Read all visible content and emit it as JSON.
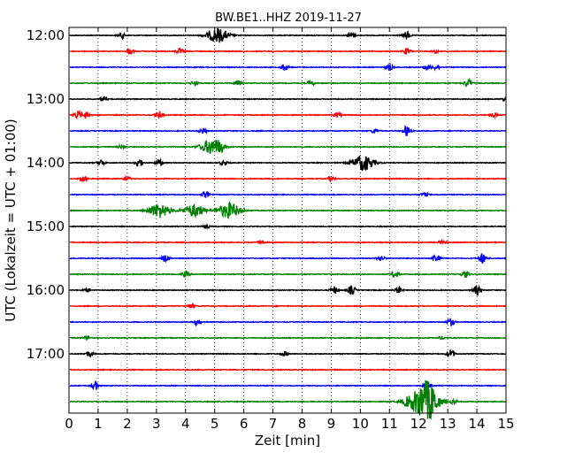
{
  "chart_data": {
    "type": "line",
    "title": "BW.BE1..HHZ 2019-11-27",
    "xlabel": "Zeit  [min]",
    "ylabel": "UTC (Lokalzeit = UTC + 01:00)",
    "xlim": [
      0,
      15
    ],
    "x_ticks": [
      "0",
      "1",
      "2",
      "3",
      "4",
      "5",
      "6",
      "7",
      "8",
      "9",
      "10",
      "11",
      "12",
      "13",
      "14",
      "15"
    ],
    "y_ticks": [
      "12:00",
      "13:00",
      "14:00",
      "15:00",
      "16:00",
      "17:00"
    ],
    "grid": true,
    "colors": [
      "#000000",
      "#ff0000",
      "#0000ff",
      "#008000"
    ],
    "series": [
      {
        "start": "12:00",
        "color": "#000000",
        "events": [
          [
            1.8,
            0.35
          ],
          [
            5.1,
            0.9
          ],
          [
            9.7,
            0.4
          ],
          [
            11.6,
            0.5
          ]
        ]
      },
      {
        "start": "12:15",
        "color": "#ff0000",
        "events": [
          [
            2.1,
            0.3
          ],
          [
            3.8,
            0.35
          ],
          [
            11.6,
            0.4
          ],
          [
            12.6,
            0.25
          ]
        ]
      },
      {
        "start": "12:30",
        "color": "#0000ff",
        "events": [
          [
            7.4,
            0.4
          ],
          [
            11.0,
            0.35
          ],
          [
            12.3,
            0.3
          ],
          [
            12.6,
            0.3
          ]
        ]
      },
      {
        "start": "12:45",
        "color": "#008000",
        "events": [
          [
            4.3,
            0.3
          ],
          [
            5.8,
            0.3
          ],
          [
            8.3,
            0.3
          ],
          [
            13.7,
            0.55
          ]
        ]
      },
      {
        "start": "13:00",
        "color": "#000000",
        "events": [
          [
            1.2,
            0.25
          ],
          [
            15.0,
            0.3
          ]
        ]
      },
      {
        "start": "13:15",
        "color": "#ff0000",
        "events": [
          [
            0.3,
            0.5
          ],
          [
            0.6,
            0.45
          ],
          [
            3.1,
            0.45
          ],
          [
            9.2,
            0.3
          ],
          [
            14.6,
            0.25
          ]
        ]
      },
      {
        "start": "13:30",
        "color": "#0000ff",
        "events": [
          [
            4.6,
            0.35
          ],
          [
            10.5,
            0.3
          ],
          [
            11.6,
            0.7
          ]
        ]
      },
      {
        "start": "13:45",
        "color": "#008000",
        "events": [
          [
            1.8,
            0.25
          ],
          [
            4.9,
            1.0
          ],
          [
            5.2,
            0.4
          ]
        ]
      },
      {
        "start": "14:00",
        "color": "#000000",
        "events": [
          [
            1.1,
            0.4
          ],
          [
            2.4,
            0.55
          ],
          [
            3.1,
            0.4
          ],
          [
            5.3,
            0.3
          ],
          [
            10.1,
            1.0
          ]
        ]
      },
      {
        "start": "14:15",
        "color": "#ff0000",
        "events": [
          [
            0.5,
            0.35
          ],
          [
            2.0,
            0.25
          ],
          [
            9.0,
            0.3
          ]
        ]
      },
      {
        "start": "14:30",
        "color": "#0000ff",
        "events": [
          [
            4.7,
            0.4
          ],
          [
            12.2,
            0.25
          ]
        ]
      },
      {
        "start": "14:45",
        "color": "#008000",
        "events": [
          [
            3.1,
            0.9
          ],
          [
            4.3,
            0.8
          ],
          [
            5.5,
            1.0
          ]
        ]
      },
      {
        "start": "15:00",
        "color": "#000000",
        "events": [
          [
            4.7,
            0.2
          ]
        ]
      },
      {
        "start": "15:15",
        "color": "#ff0000",
        "events": [
          [
            6.6,
            0.25
          ],
          [
            12.8,
            0.2
          ]
        ]
      },
      {
        "start": "15:30",
        "color": "#0000ff",
        "events": [
          [
            3.3,
            0.45
          ],
          [
            10.7,
            0.35
          ],
          [
            12.6,
            0.6
          ],
          [
            14.2,
            0.7
          ]
        ]
      },
      {
        "start": "15:45",
        "color": "#008000",
        "events": [
          [
            4.0,
            0.35
          ],
          [
            11.2,
            0.5
          ],
          [
            13.6,
            0.45
          ]
        ]
      },
      {
        "start": "16:00",
        "color": "#000000",
        "events": [
          [
            0.6,
            0.2
          ],
          [
            9.1,
            0.45
          ],
          [
            9.7,
            0.6
          ],
          [
            11.3,
            0.4
          ],
          [
            14.0,
            0.6
          ]
        ]
      },
      {
        "start": "16:15",
        "color": "#ff0000",
        "events": [
          [
            4.2,
            0.3
          ]
        ]
      },
      {
        "start": "16:30",
        "color": "#0000ff",
        "events": [
          [
            4.4,
            0.35
          ],
          [
            13.1,
            0.5
          ]
        ]
      },
      {
        "start": "16:45",
        "color": "#008000",
        "events": [
          [
            0.6,
            0.2
          ],
          [
            12.8,
            0.2
          ]
        ]
      },
      {
        "start": "17:00",
        "color": "#000000",
        "events": [
          [
            0.7,
            0.35
          ],
          [
            7.4,
            0.25
          ],
          [
            13.1,
            0.55
          ]
        ]
      },
      {
        "start": "17:15",
        "color": "#ff0000",
        "events": []
      },
      {
        "start": "17:30",
        "color": "#0000ff",
        "events": [
          [
            0.9,
            0.55
          ],
          [
            12.3,
            0.45
          ]
        ]
      },
      {
        "start": "17:45",
        "color": "#008000",
        "events": [
          [
            11.8,
            0.8
          ],
          [
            12.3,
            2.6
          ],
          [
            13.2,
            0.25
          ]
        ]
      }
    ]
  }
}
